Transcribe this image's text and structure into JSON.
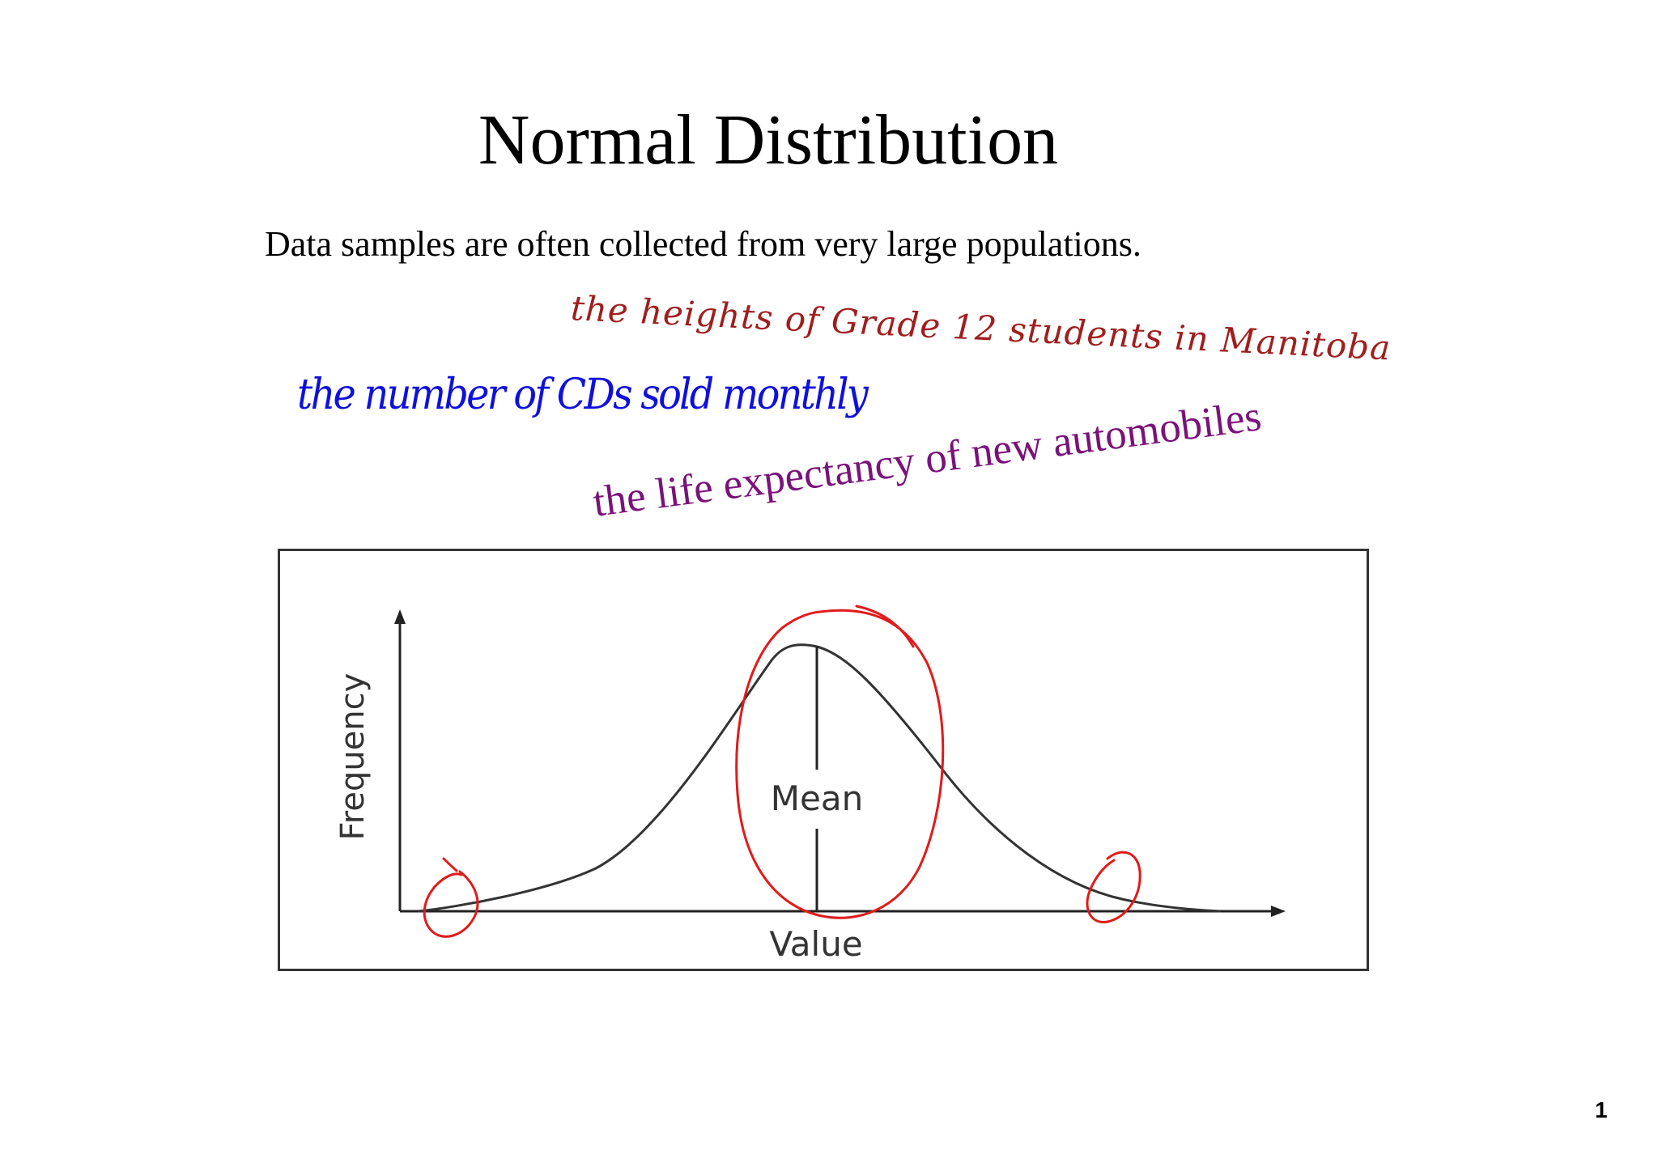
{
  "title": "Normal Distribution",
  "intro": "Data samples are often collected from very large populations.",
  "annotations": [
    {
      "text": "the heights of Grade 12 students in Manitoba",
      "color": "#a01e1e"
    },
    {
      "text": "the number of CDs sold monthly",
      "color": "#1010dd"
    },
    {
      "text": "the life expectancy of new automobiles",
      "color": "#7a127a"
    }
  ],
  "figure": {
    "axis_x_label": "Value",
    "axis_y_label": "Frequency",
    "mean_label": "Mean",
    "ink_color": "#e01b1b"
  },
  "page_number": "1"
}
